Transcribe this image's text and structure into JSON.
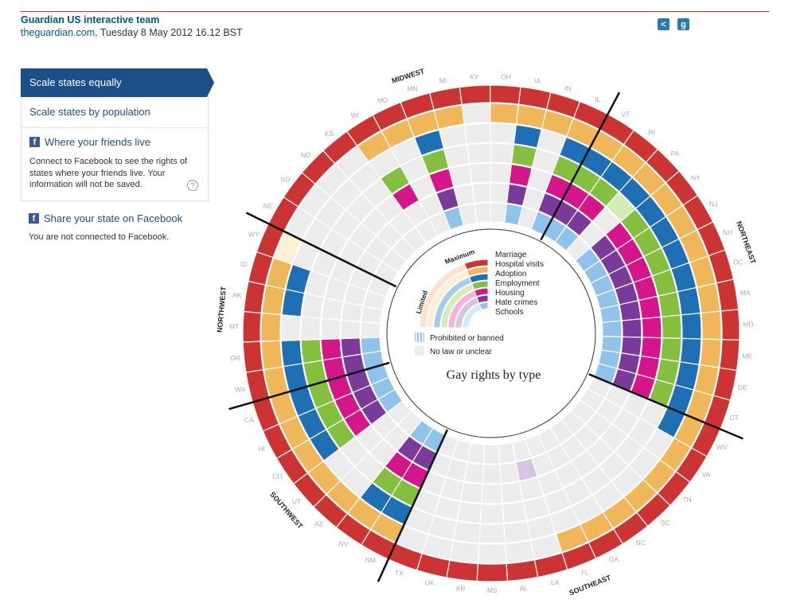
{
  "byline": {
    "author": "Guardian US interactive team",
    "site": "theguardian.com",
    "date": ", Tuesday 8 May 2012 16.12 BST"
  },
  "share_icons": [
    {
      "name": "share-icon",
      "glyph": "<"
    },
    {
      "name": "google-icon",
      "glyph": "g"
    }
  ],
  "sidebar": {
    "scale_equal": "Scale states equally",
    "scale_population": "Scale states by population",
    "friends_title": "Where your friends live",
    "friends_desc": "Connect to Facebook to see the rights of states where your friends live. Your information will not be saved.",
    "help": "?",
    "share_state": "Share your state on Facebook",
    "not_connected": "You are not connected to Facebook.",
    "fb_glyph": "f"
  },
  "chart_data": {
    "type": "radial",
    "title": "Gay rights by type",
    "legend": {
      "maximum": "Maximum",
      "limited": "Limited",
      "prohibited": "Prohibited or banned",
      "no_law": "No law or unclear"
    },
    "rings": [
      {
        "name": "Marriage",
        "full": "#cc3333",
        "partial": "#fde3cc"
      },
      {
        "name": "Hospital visits",
        "full": "#f0b75a",
        "partial": "#fdf0d5"
      },
      {
        "name": "Adoption",
        "full": "#1f6fb5",
        "partial": "#a5cce8"
      },
      {
        "name": "Employment",
        "full": "#85bf3f",
        "partial": "#d5ebb8"
      },
      {
        "name": "Housing",
        "full": "#d4168a",
        "partial": "#f5b2d6"
      },
      {
        "name": "Hate crimes",
        "full": "#7a3a9a",
        "partial": "#d9c3e3"
      },
      {
        "name": "Schools",
        "full": "#8fc3ec",
        "partial": "#d6e9f8"
      }
    ],
    "regions": [
      {
        "name": "NORTHEAST",
        "states": [
          "VT",
          "RI",
          "PA",
          "NY",
          "NJ",
          "NH",
          "DC",
          "MA",
          "MD",
          "ME",
          "DE",
          "CT"
        ]
      },
      {
        "name": "SOUTHEAST",
        "states": [
          "WV",
          "VA",
          "TN",
          "SC",
          "NC",
          "GA",
          "FL",
          "LA",
          "AL",
          "MS",
          "AR",
          "OK",
          "TX"
        ]
      },
      {
        "name": "SOUTHWEST",
        "states": [
          "NM",
          "NV",
          "AZ",
          "UT",
          "CO",
          "HI",
          "CA"
        ]
      },
      {
        "name": "NORTHWEST",
        "states": [
          "WA",
          "OR",
          "MT",
          "AK",
          "ID",
          "WY"
        ]
      },
      {
        "name": "MIDWEST",
        "states": [
          "NE",
          "SD",
          "ND",
          "KS",
          "WI",
          "MO",
          "MN",
          "MI",
          "KY",
          "OH",
          "IA",
          "IN",
          "IL"
        ]
      }
    ],
    "states": [
      {
        "state": "VT",
        "status": [
          "F",
          "F",
          "F",
          "F",
          "F",
          "F",
          "F"
        ]
      },
      {
        "state": "RI",
        "status": [
          "F",
          "F",
          "F",
          "F",
          "F",
          "F",
          "F"
        ]
      },
      {
        "state": "PA",
        "status": [
          "F",
          "F",
          "F",
          "P",
          "N",
          "N",
          "N"
        ]
      },
      {
        "state": "NY",
        "status": [
          "F",
          "F",
          "F",
          "F",
          "F",
          "F",
          "F"
        ]
      },
      {
        "state": "NJ",
        "status": [
          "F",
          "F",
          "F",
          "F",
          "F",
          "F",
          "F"
        ]
      },
      {
        "state": "NH",
        "status": [
          "F",
          "F",
          "F",
          "F",
          "F",
          "F",
          "F"
        ]
      },
      {
        "state": "DC",
        "status": [
          "F",
          "F",
          "F",
          "F",
          "F",
          "F",
          "F"
        ]
      },
      {
        "state": "MA",
        "status": [
          "F",
          "F",
          "F",
          "F",
          "F",
          "F",
          "F"
        ]
      },
      {
        "state": "MD",
        "status": [
          "F",
          "F",
          "F",
          "F",
          "F",
          "F",
          "F"
        ]
      },
      {
        "state": "ME",
        "status": [
          "F",
          "F",
          "F",
          "F",
          "F",
          "F",
          "F"
        ]
      },
      {
        "state": "DE",
        "status": [
          "F",
          "F",
          "F",
          "F",
          "F",
          "F",
          "F"
        ]
      },
      {
        "state": "CT",
        "status": [
          "F",
          "F",
          "F",
          "F",
          "F",
          "F",
          "F"
        ]
      },
      {
        "state": "WV",
        "status": [
          "F",
          "F",
          "F",
          "N",
          "N",
          "N",
          "N"
        ]
      },
      {
        "state": "VA",
        "status": [
          "F",
          "F",
          "N",
          "N",
          "N",
          "N",
          "N"
        ]
      },
      {
        "state": "TN",
        "status": [
          "F",
          "F",
          "N",
          "N",
          "N",
          "N",
          "N"
        ]
      },
      {
        "state": "SC",
        "status": [
          "F",
          "F",
          "N",
          "N",
          "N",
          "N",
          "N"
        ]
      },
      {
        "state": "NC",
        "status": [
          "F",
          "F",
          "N",
          "N",
          "N",
          "N",
          "N"
        ]
      },
      {
        "state": "GA",
        "status": [
          "F",
          "F",
          "N",
          "N",
          "N",
          "N",
          "N"
        ]
      },
      {
        "state": "FL",
        "status": [
          "F",
          "F",
          "N",
          "N",
          "N",
          "N",
          "N"
        ]
      },
      {
        "state": "LA",
        "status": [
          "F",
          "N",
          "N",
          "N",
          "N",
          "P",
          "N"
        ]
      },
      {
        "state": "AL",
        "status": [
          "F",
          "N",
          "N",
          "N",
          "N",
          "N",
          "N"
        ]
      },
      {
        "state": "MS",
        "status": [
          "F",
          "N",
          "N",
          "N",
          "N",
          "N",
          "N"
        ]
      },
      {
        "state": "AR",
        "status": [
          "F",
          "N",
          "N",
          "N",
          "N",
          "N",
          "N"
        ]
      },
      {
        "state": "OK",
        "status": [
          "F",
          "N",
          "N",
          "N",
          "N",
          "N",
          "N"
        ]
      },
      {
        "state": "TX",
        "status": [
          "F",
          "N",
          "N",
          "N",
          "N",
          "N",
          "N"
        ]
      },
      {
        "state": "NM",
        "status": [
          "F",
          "F",
          "F",
          "F",
          "F",
          "F",
          "F"
        ]
      },
      {
        "state": "NV",
        "status": [
          "F",
          "F",
          "F",
          "F",
          "F",
          "F",
          "F"
        ]
      },
      {
        "state": "AZ",
        "status": [
          "F",
          "F",
          "N",
          "N",
          "N",
          "N",
          "N"
        ]
      },
      {
        "state": "UT",
        "status": [
          "F",
          "F",
          "N",
          "N",
          "N",
          "N",
          "N"
        ]
      },
      {
        "state": "CO",
        "status": [
          "F",
          "F",
          "F",
          "F",
          "F",
          "F",
          "F"
        ]
      },
      {
        "state": "HI",
        "status": [
          "F",
          "F",
          "F",
          "F",
          "F",
          "F",
          "F"
        ]
      },
      {
        "state": "CA",
        "status": [
          "F",
          "F",
          "F",
          "F",
          "F",
          "F",
          "F"
        ]
      },
      {
        "state": "WA",
        "status": [
          "F",
          "F",
          "F",
          "F",
          "F",
          "F",
          "F"
        ]
      },
      {
        "state": "OR",
        "status": [
          "F",
          "F",
          "F",
          "F",
          "F",
          "F",
          "F"
        ]
      },
      {
        "state": "MT",
        "status": [
          "F",
          "F",
          "N",
          "N",
          "N",
          "N",
          "N"
        ]
      },
      {
        "state": "AK",
        "status": [
          "F",
          "F",
          "F",
          "N",
          "N",
          "N",
          "N"
        ]
      },
      {
        "state": "ID",
        "status": [
          "F",
          "F",
          "F",
          "N",
          "N",
          "N",
          "N"
        ]
      },
      {
        "state": "WY",
        "status": [
          "F",
          "P",
          "N",
          "N",
          "N",
          "N",
          "N"
        ]
      },
      {
        "state": "NE",
        "status": [
          "F",
          "N",
          "N",
          "N",
          "N",
          "N",
          "N"
        ]
      },
      {
        "state": "SD",
        "status": [
          "F",
          "N",
          "N",
          "N",
          "N",
          "N",
          "N"
        ]
      },
      {
        "state": "ND",
        "status": [
          "F",
          "N",
          "N",
          "N",
          "N",
          "N",
          "N"
        ]
      },
      {
        "state": "KS",
        "status": [
          "F",
          "N",
          "N",
          "N",
          "N",
          "N",
          "N"
        ]
      },
      {
        "state": "WI",
        "status": [
          "F",
          "F",
          "N",
          "F",
          "F",
          "N",
          "N"
        ]
      },
      {
        "state": "MO",
        "status": [
          "F",
          "F",
          "N",
          "N",
          "N",
          "N",
          "N"
        ]
      },
      {
        "state": "MN",
        "status": [
          "F",
          "F",
          "F",
          "F",
          "F",
          "F",
          "F"
        ]
      },
      {
        "state": "MI",
        "status": [
          "F",
          "F",
          "N",
          "N",
          "N",
          "N",
          "N"
        ]
      },
      {
        "state": "KY",
        "status": [
          "F",
          "N",
          "N",
          "N",
          "N",
          "N",
          "N"
        ]
      },
      {
        "state": "OH",
        "status": [
          "F",
          "F",
          "N",
          "N",
          "N",
          "N",
          "N"
        ]
      },
      {
        "state": "IA",
        "status": [
          "F",
          "F",
          "F",
          "F",
          "F",
          "F",
          "F"
        ]
      },
      {
        "state": "IN",
        "status": [
          "F",
          "F",
          "N",
          "N",
          "N",
          "N",
          "N"
        ]
      },
      {
        "state": "IL",
        "status": [
          "F",
          "F",
          "F",
          "F",
          "F",
          "F",
          "F"
        ]
      }
    ]
  }
}
